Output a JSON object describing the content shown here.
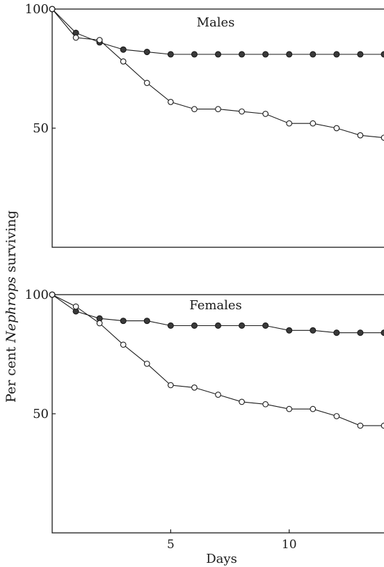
{
  "figure": {
    "ylabel_prefix": "Per cent ",
    "ylabel_italic": "Nephrops",
    "ylabel_suffix": " surviving"
  },
  "chart_data": [
    {
      "type": "line",
      "title": "Males",
      "xlabel": "",
      "ylabel": "Per cent Nephrops surviving",
      "xlim": [
        0,
        14
      ],
      "ylim": [
        0,
        100
      ],
      "yticks": [
        50,
        100
      ],
      "xticks": [],
      "grid": false,
      "series": [
        {
          "marker": "filled-circle",
          "x": [
            0,
            1,
            2,
            3,
            4,
            5,
            6,
            7,
            8,
            9,
            10,
            11,
            12,
            13,
            14
          ],
          "values": [
            100,
            90,
            86,
            83,
            82,
            81,
            81,
            81,
            81,
            81,
            81,
            81,
            81,
            81,
            81
          ]
        },
        {
          "marker": "open-circle",
          "x": [
            0,
            1,
            2,
            3,
            4,
            5,
            6,
            7,
            8,
            9,
            10,
            11,
            12,
            13,
            14
          ],
          "values": [
            100,
            88,
            87,
            78,
            69,
            61,
            58,
            58,
            57,
            56,
            52,
            52,
            50,
            47,
            46
          ]
        }
      ]
    },
    {
      "type": "line",
      "title": "Females",
      "xlabel": "Days",
      "ylabel": "Per cent Nephrops surviving",
      "xlim": [
        0,
        14
      ],
      "ylim": [
        0,
        100
      ],
      "yticks": [
        50,
        100
      ],
      "xticks": [
        5,
        10
      ],
      "grid": false,
      "series": [
        {
          "marker": "filled-circle",
          "x": [
            0,
            1,
            2,
            3,
            4,
            5,
            6,
            7,
            8,
            9,
            10,
            11,
            12,
            13,
            14
          ],
          "values": [
            100,
            93,
            90,
            89,
            89,
            87,
            87,
            87,
            87,
            87,
            85,
            85,
            84,
            84,
            84
          ]
        },
        {
          "marker": "open-circle",
          "x": [
            0,
            1,
            2,
            3,
            4,
            5,
            6,
            7,
            8,
            9,
            10,
            11,
            12,
            13,
            14
          ],
          "values": [
            100,
            95,
            88,
            79,
            71,
            62,
            61,
            58,
            55,
            54,
            52,
            52,
            49,
            45,
            45
          ]
        }
      ]
    }
  ]
}
